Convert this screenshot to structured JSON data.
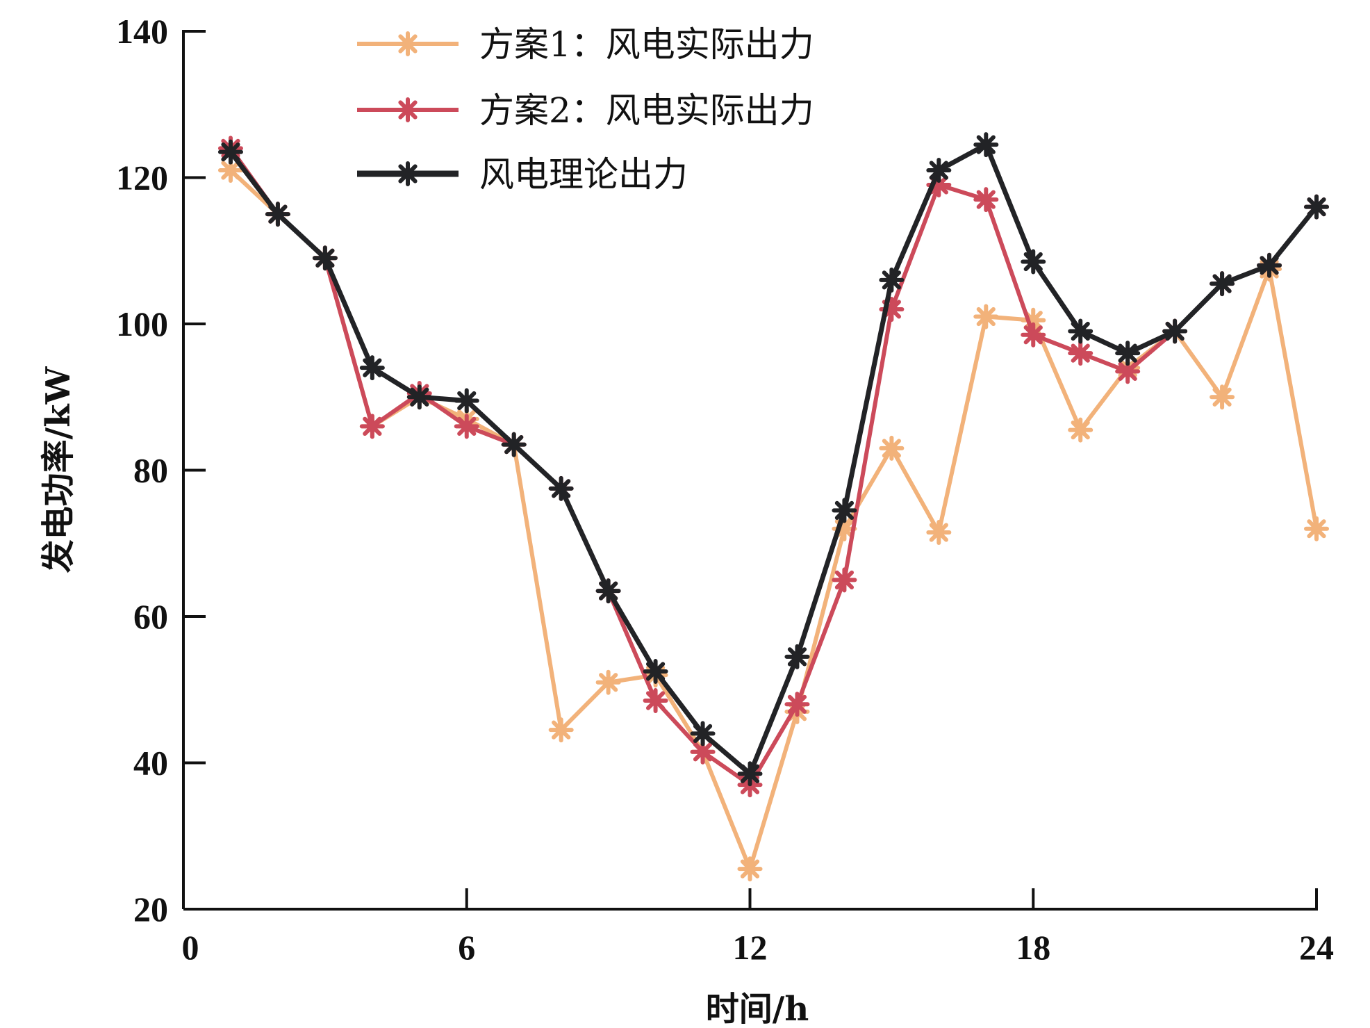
{
  "chart_data": {
    "type": "line",
    "title": "",
    "xlabel": "时间/h",
    "ylabel": "发电功率/kW",
    "xlim": [
      0,
      24
    ],
    "ylim": [
      20,
      140
    ],
    "xticks": [
      0,
      6,
      12,
      18,
      24
    ],
    "yticks": [
      20,
      40,
      60,
      80,
      100,
      120,
      140
    ],
    "grid": false,
    "legend_position": "top-left",
    "x": [
      1,
      2,
      3,
      4,
      5,
      6,
      7,
      8,
      9,
      10,
      11,
      12,
      13,
      14,
      15,
      16,
      17,
      18,
      19,
      20,
      21,
      22,
      23,
      24
    ],
    "series": [
      {
        "name": "方案1：风电实际出力",
        "color": "#f2b27a",
        "values": [
          121,
          115,
          109,
          86,
          90,
          87,
          83.5,
          44.5,
          51,
          52,
          41.5,
          25.5,
          47,
          72,
          83,
          71.5,
          101,
          100.5,
          85.5,
          94,
          99,
          90,
          107.5,
          72
        ]
      },
      {
        "name": "方案2：风电实际出力",
        "color": "#cc4a5a",
        "values": [
          124,
          115,
          109,
          86,
          90.5,
          86,
          83.5,
          77.5,
          63.5,
          48.5,
          41.5,
          37,
          48,
          65,
          102,
          119,
          117,
          98.5,
          96,
          93.5,
          99,
          105.5,
          108,
          116
        ]
      },
      {
        "name": "风电理论出力",
        "color": "#222326",
        "values": [
          123.5,
          115,
          109,
          94,
          90,
          89.5,
          83.5,
          77.5,
          63.5,
          52.5,
          44,
          38.5,
          54.5,
          74.5,
          106,
          121,
          124.5,
          108.5,
          99,
          96,
          99,
          105.5,
          108,
          116
        ]
      }
    ]
  }
}
